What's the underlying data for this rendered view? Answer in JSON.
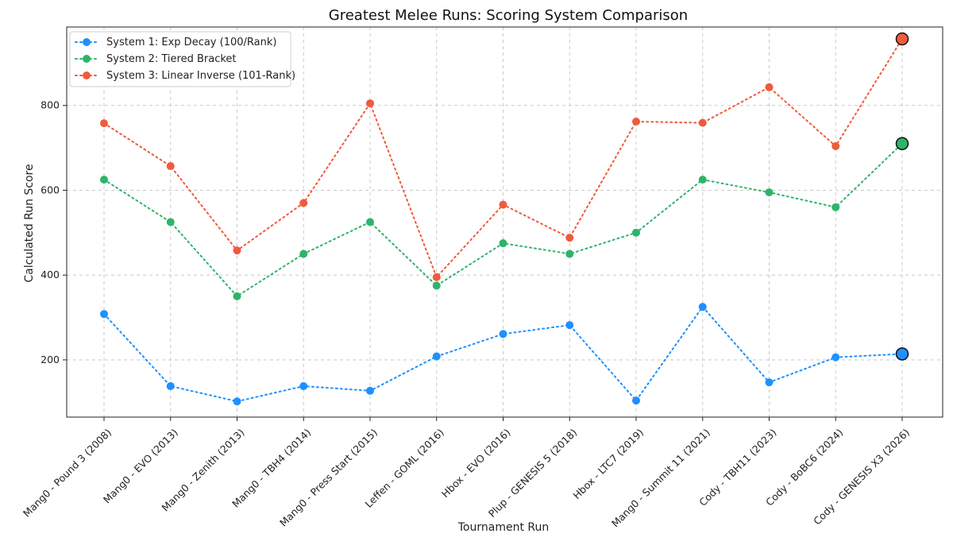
{
  "chart_data": {
    "type": "line",
    "title": "Greatest Melee Runs: Scoring System Comparison",
    "xlabel": "Tournament Run",
    "ylabel": "Calculated Run Score",
    "categories": [
      "Mang0 - Pound 3 (2008)",
      "Mang0 - EVO (2013)",
      "Mang0 - Zenith (2013)",
      "Mang0 - TBH4 (2014)",
      "Mang0 - Press Start (2015)",
      "Leffen - GOML (2016)",
      "Hbox - EVO (2016)",
      "Plup - GENESIS 5 (2018)",
      "Hbox - LTC7 (2019)",
      "Mang0 - Summit 11 (2021)",
      "Cody - TBH11 (2023)",
      "Cody - BoBC6 (2024)",
      "Cody - GENESIS X3 (2026)"
    ],
    "yticks": [
      "200",
      "400",
      "600",
      "800"
    ],
    "ylim": [
      65,
      985
    ],
    "grid": true,
    "legend_position": "top-left",
    "highlight_last_point": true,
    "series": [
      {
        "name": "System 1: Exp Decay (100/Rank)",
        "color": "#1E90FF",
        "values": [
          308,
          138,
          102,
          138,
          127,
          208,
          261,
          282,
          104,
          325,
          147,
          206,
          214
        ]
      },
      {
        "name": "System 2: Tiered Bracket",
        "color": "#2FB36B",
        "values": [
          625,
          525,
          350,
          450,
          525,
          375,
          475,
          450,
          500,
          625,
          595,
          560,
          710
        ]
      },
      {
        "name": "System 3: Linear Inverse (101-Rank)",
        "color": "#F05A3D",
        "values": [
          758,
          657,
          458,
          570,
          805,
          395,
          566,
          488,
          762,
          759,
          843,
          704,
          957
        ]
      }
    ]
  }
}
